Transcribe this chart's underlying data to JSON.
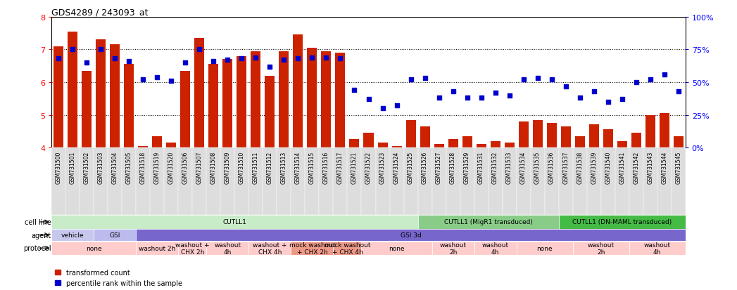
{
  "title": "GDS4289 / 243093_at",
  "samples": [
    "GSM731500",
    "GSM731501",
    "GSM731502",
    "GSM731503",
    "GSM731504",
    "GSM731505",
    "GSM731518",
    "GSM731519",
    "GSM731520",
    "GSM731506",
    "GSM731507",
    "GSM731508",
    "GSM731509",
    "GSM731510",
    "GSM731511",
    "GSM731512",
    "GSM731513",
    "GSM731514",
    "GSM731515",
    "GSM731516",
    "GSM731517",
    "GSM731521",
    "GSM731522",
    "GSM731523",
    "GSM731524",
    "GSM731525",
    "GSM731526",
    "GSM731527",
    "GSM731528",
    "GSM731529",
    "GSM731531",
    "GSM731532",
    "GSM731533",
    "GSM731534",
    "GSM731535",
    "GSM731536",
    "GSM731537",
    "GSM731538",
    "GSM731539",
    "GSM731540",
    "GSM731541",
    "GSM731542",
    "GSM731543",
    "GSM731544",
    "GSM731545"
  ],
  "bar_values": [
    7.1,
    7.55,
    6.35,
    7.3,
    7.15,
    6.55,
    4.05,
    4.35,
    4.15,
    6.35,
    7.35,
    6.55,
    6.7,
    6.8,
    6.95,
    6.2,
    6.95,
    7.45,
    7.05,
    6.95,
    6.9,
    4.25,
    4.45,
    4.15,
    4.05,
    4.85,
    4.65,
    4.1,
    4.25,
    4.35,
    4.1,
    4.2,
    4.15,
    4.8,
    4.85,
    4.75,
    4.65,
    4.35,
    4.7,
    4.55,
    4.2,
    4.45,
    5.0,
    5.05,
    4.35
  ],
  "dot_values": [
    68,
    75,
    65,
    75,
    68,
    66,
    52,
    54,
    51,
    65,
    75,
    66,
    67,
    68,
    69,
    62,
    67,
    68,
    69,
    69,
    68,
    44,
    37,
    30,
    32,
    52,
    53,
    38,
    43,
    38,
    38,
    42,
    40,
    52,
    53,
    52,
    47,
    38,
    43,
    35,
    37,
    50,
    52,
    56,
    43
  ],
  "ylim_left": [
    4,
    8
  ],
  "ylim_right": [
    0,
    100
  ],
  "yticks_left": [
    4,
    5,
    6,
    7,
    8
  ],
  "yticks_right": [
    0,
    25,
    50,
    75,
    100
  ],
  "bar_color": "#cc2200",
  "dot_color": "#0000cc",
  "bar_bottom": 4.0,
  "cell_line_sections": [
    {
      "label": "CUTLL1",
      "start": 0,
      "end": 26,
      "color": "#c8ebc8"
    },
    {
      "label": "CUTLL1 (MigR1 transduced)",
      "start": 26,
      "end": 36,
      "color": "#88cc88"
    },
    {
      "label": "CUTLL1 (DN-MAML transduced)",
      "start": 36,
      "end": 45,
      "color": "#44bb44"
    }
  ],
  "agent_sections": [
    {
      "label": "vehicle",
      "start": 0,
      "end": 3,
      "color": "#c8c8ee"
    },
    {
      "label": "GSI",
      "start": 3,
      "end": 6,
      "color": "#bbbbee"
    },
    {
      "label": "GSI 3d",
      "start": 6,
      "end": 45,
      "color": "#7766cc"
    }
  ],
  "protocol_sections": [
    {
      "label": "none",
      "start": 0,
      "end": 6,
      "color": "#ffcccc"
    },
    {
      "label": "washout 2h",
      "start": 6,
      "end": 9,
      "color": "#ffcccc"
    },
    {
      "label": "washout +\nCHX 2h",
      "start": 9,
      "end": 11,
      "color": "#ffcccc"
    },
    {
      "label": "washout\n4h",
      "start": 11,
      "end": 14,
      "color": "#ffcccc"
    },
    {
      "label": "washout +\nCHX 4h",
      "start": 14,
      "end": 17,
      "color": "#ffcccc"
    },
    {
      "label": "mock washout\n+ CHX 2h",
      "start": 17,
      "end": 20,
      "color": "#ee9988"
    },
    {
      "label": "mock washout\n+ CHX 4h",
      "start": 20,
      "end": 22,
      "color": "#ee9988"
    },
    {
      "label": "none",
      "start": 22,
      "end": 27,
      "color": "#ffcccc"
    },
    {
      "label": "washout\n2h",
      "start": 27,
      "end": 30,
      "color": "#ffcccc"
    },
    {
      "label": "washout\n4h",
      "start": 30,
      "end": 33,
      "color": "#ffcccc"
    },
    {
      "label": "none",
      "start": 33,
      "end": 37,
      "color": "#ffcccc"
    },
    {
      "label": "washout\n2h",
      "start": 37,
      "end": 41,
      "color": "#ffcccc"
    },
    {
      "label": "washout\n4h",
      "start": 41,
      "end": 45,
      "color": "#ffcccc"
    }
  ],
  "legend_items": [
    {
      "label": "transformed count",
      "color": "#cc2200"
    },
    {
      "label": "percentile rank within the sample",
      "color": "#0000cc"
    }
  ],
  "tick_bg_color": "#dddddd",
  "gridline_color": "#000000",
  "gridline_yticks": [
    5,
    6,
    7
  ]
}
